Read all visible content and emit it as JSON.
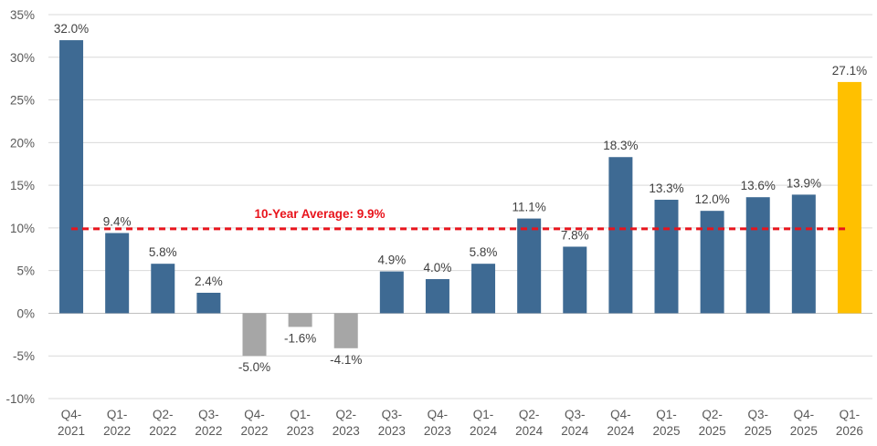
{
  "chart_data": {
    "type": "bar",
    "categories": [
      [
        "Q4-",
        "2021"
      ],
      [
        "Q1-",
        "2022"
      ],
      [
        "Q2-",
        "2022"
      ],
      [
        "Q3-",
        "2022"
      ],
      [
        "Q4-",
        "2022"
      ],
      [
        "Q1-",
        "2023"
      ],
      [
        "Q2-",
        "2023"
      ],
      [
        "Q3-",
        "2023"
      ],
      [
        "Q4-",
        "2023"
      ],
      [
        "Q1-",
        "2024"
      ],
      [
        "Q2-",
        "2024"
      ],
      [
        "Q3-",
        "2024"
      ],
      [
        "Q4-",
        "2024"
      ],
      [
        "Q1-",
        "2025"
      ],
      [
        "Q2-",
        "2025"
      ],
      [
        "Q3-",
        "2025"
      ],
      [
        "Q4-",
        "2025"
      ],
      [
        "Q1-",
        "2026"
      ]
    ],
    "values": [
      32.0,
      9.4,
      5.8,
      2.4,
      -5.0,
      -1.6,
      -4.1,
      4.9,
      4.0,
      5.8,
      11.1,
      7.8,
      18.3,
      13.3,
      12.0,
      13.6,
      13.9,
      27.1
    ],
    "data_labels": [
      "32.0%",
      "9.4%",
      "5.8%",
      "2.4%",
      "-5.0%",
      "-1.6%",
      "-4.1%",
      "4.9%",
      "4.0%",
      "5.8%",
      "11.1%",
      "7.8%",
      "18.3%",
      "13.3%",
      "12.0%",
      "13.6%",
      "13.9%",
      "27.1%"
    ],
    "bar_colors": [
      "#3e6a93",
      "#3e6a93",
      "#3e6a93",
      "#3e6a93",
      "#a6a6a6",
      "#a6a6a6",
      "#a6a6a6",
      "#3e6a93",
      "#3e6a93",
      "#3e6a93",
      "#3e6a93",
      "#3e6a93",
      "#3e6a93",
      "#3e6a93",
      "#3e6a93",
      "#3e6a93",
      "#3e6a93",
      "#ffc000"
    ],
    "y_ticks": [
      35,
      30,
      25,
      20,
      15,
      10,
      5,
      0,
      -5,
      -10
    ],
    "y_tick_labels": [
      "35%",
      "30%",
      "25%",
      "20%",
      "15%",
      "10%",
      "5%",
      "0%",
      "-5%",
      "-10%"
    ],
    "ylim": [
      -10,
      35
    ],
    "grid": true,
    "reference_line": {
      "label": "10-Year Average: 9.9%",
      "value": 9.9,
      "color": "#e8141c",
      "style": "dashed"
    },
    "title": "",
    "xlabel": "",
    "ylabel": ""
  }
}
